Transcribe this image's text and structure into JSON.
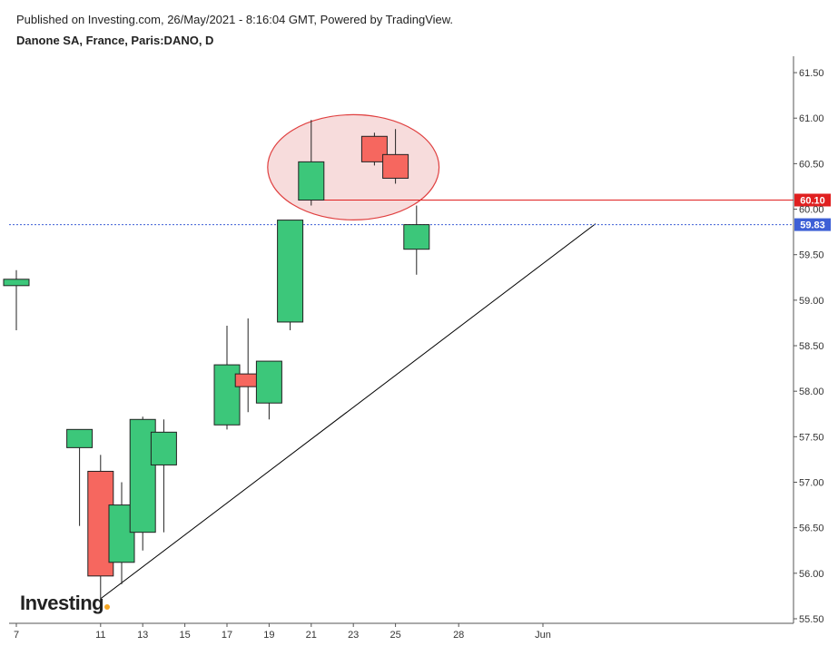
{
  "header": {
    "published": "Published on Investing.com, 26/May/2021 - 8:16:04 GMT, Powered by TradingView.",
    "instrument": "Danone SA, France, Paris:DANO, D"
  },
  "logo": {
    "text": "Investing",
    "suffix": ".com"
  },
  "colors": {
    "up": "#3cc77a",
    "down": "#f6675f",
    "wick": "#222222",
    "resistance": "#e02020",
    "last_price": "#3d5fd6",
    "trendline": "#000000",
    "highlight_fill": "#f7dcdc",
    "highlight_stroke": "#e04040"
  },
  "chart_data": {
    "type": "candlestick",
    "x_ticks": [
      "7",
      "11",
      "13",
      "15",
      "17",
      "19",
      "21",
      "23",
      "25",
      "28",
      "Jun"
    ],
    "y_ticks": [
      "61.50",
      "61.00",
      "60.50",
      "60.00",
      "59.50",
      "59.00",
      "58.50",
      "58.00",
      "57.50",
      "57.00",
      "56.50",
      "56.00",
      "55.50"
    ],
    "ylim": [
      55.45,
      61.68
    ],
    "candles": [
      {
        "date": "7",
        "open": 59.16,
        "high": 59.33,
        "low": 58.67,
        "close": 59.23
      },
      {
        "date": "10",
        "open": 57.38,
        "high": 57.58,
        "low": 56.52,
        "close": 57.58
      },
      {
        "date": "11",
        "open": 57.12,
        "high": 57.3,
        "low": 55.72,
        "close": 55.97
      },
      {
        "date": "12",
        "open": 56.12,
        "high": 57.0,
        "low": 55.88,
        "close": 56.75
      },
      {
        "date": "13",
        "open": 56.45,
        "high": 57.72,
        "low": 56.25,
        "close": 57.69
      },
      {
        "date": "14",
        "open": 57.19,
        "high": 57.69,
        "low": 56.45,
        "close": 57.55
      },
      {
        "date": "17",
        "open": 57.63,
        "high": 58.72,
        "low": 57.58,
        "close": 58.29
      },
      {
        "date": "18",
        "open": 58.19,
        "high": 58.8,
        "low": 57.77,
        "close": 58.05
      },
      {
        "date": "19",
        "open": 57.87,
        "high": 58.33,
        "low": 57.69,
        "close": 58.33
      },
      {
        "date": "20",
        "open": 58.76,
        "high": 59.88,
        "low": 58.67,
        "close": 59.88
      },
      {
        "date": "21",
        "open": 60.1,
        "high": 60.98,
        "low": 60.04,
        "close": 60.52
      },
      {
        "date": "24",
        "open": 60.8,
        "high": 60.84,
        "low": 60.48,
        "close": 60.52
      },
      {
        "date": "25",
        "open": 60.6,
        "high": 60.88,
        "low": 60.28,
        "close": 60.34
      },
      {
        "date": "26",
        "open": 59.56,
        "high": 60.04,
        "low": 59.28,
        "close": 59.83
      }
    ],
    "horizontal_levels": [
      {
        "value": 60.1,
        "label": "60.10",
        "style": "solid"
      },
      {
        "value": 59.83,
        "label": "59.83",
        "style": "dotted"
      }
    ],
    "trendline": {
      "start": {
        "date": "11",
        "value": 55.72
      },
      "end": {
        "date": "Jun 1",
        "value": 59.84
      }
    },
    "highlight": {
      "shape": "ellipse",
      "from_date": "21",
      "to_date": "25",
      "center_value": 60.46
    }
  }
}
